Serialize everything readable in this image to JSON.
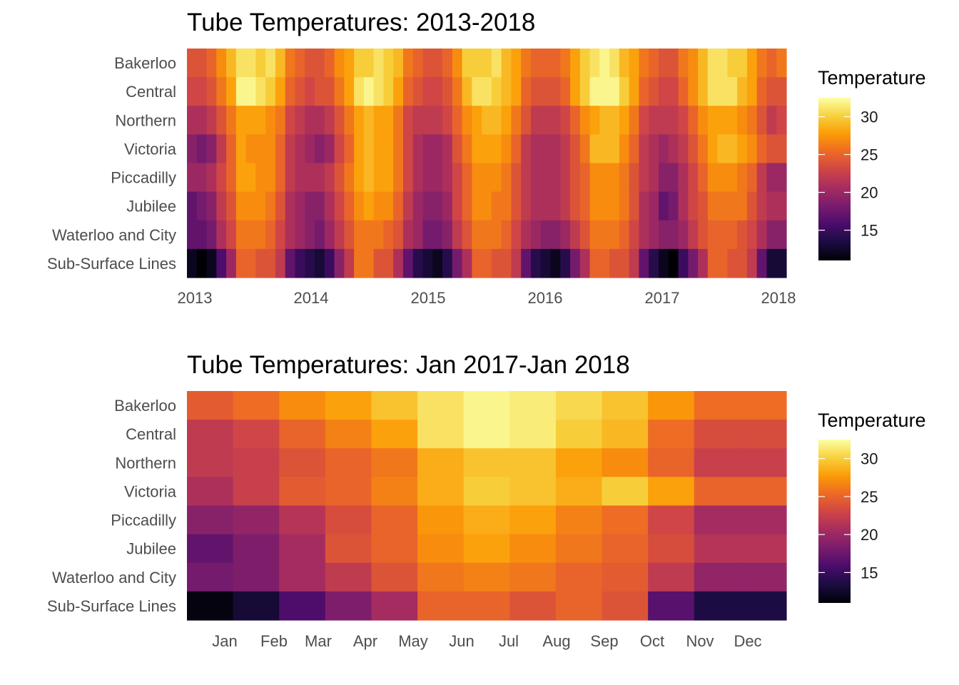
{
  "legend_title": "Temperature",
  "palette": [
    "#000004",
    "#1b0c41",
    "#4a0c6b",
    "#781c6d",
    "#a52c60",
    "#cf4446",
    "#ed6925",
    "#fb9b06",
    "#f7d13d",
    "#fcffa4"
  ],
  "chart_data": [
    {
      "type": "heatmap",
      "title": "Tube Temperatures: 2013-2018",
      "rows": [
        "Bakerloo",
        "Central",
        "Northern",
        "Victoria",
        "Piccadilly",
        "Jubilee",
        "Waterloo and City",
        "Sub-Surface Lines"
      ],
      "x_start": "2013-01",
      "x_ticks": [
        "2013",
        "2014",
        "2015",
        "2016",
        "2017",
        "2018"
      ],
      "values": [
        [
          24,
          24,
          25,
          27,
          29,
          31,
          31,
          30,
          31,
          29,
          26,
          25,
          24,
          24,
          25,
          27,
          28,
          30,
          30,
          31,
          30,
          29,
          26,
          25,
          24,
          24,
          25,
          27,
          30,
          30,
          30,
          31,
          29,
          28,
          26,
          25,
          25,
          25,
          26,
          28,
          30,
          31,
          32,
          31,
          29,
          28,
          26,
          25,
          24,
          24,
          26,
          27,
          29,
          31,
          31,
          30,
          30,
          28,
          26,
          25,
          26
        ],
        [
          23,
          23,
          24,
          26,
          28,
          32,
          32,
          31,
          30,
          28,
          25,
          24,
          23,
          24,
          24,
          26,
          28,
          31,
          32,
          31,
          30,
          28,
          25,
          24,
          23,
          23,
          24,
          26,
          29,
          31,
          31,
          30,
          29,
          28,
          25,
          24,
          24,
          24,
          25,
          28,
          30,
          32,
          32,
          32,
          30,
          28,
          25,
          24,
          23,
          23,
          25,
          27,
          29,
          31,
          31,
          31,
          29,
          28,
          25,
          24,
          24
        ],
        [
          21,
          21,
          22,
          24,
          26,
          28,
          28,
          28,
          27,
          26,
          23,
          22,
          21,
          21,
          22,
          24,
          26,
          28,
          29,
          28,
          28,
          26,
          23,
          22,
          22,
          22,
          23,
          25,
          27,
          28,
          29,
          29,
          28,
          26,
          24,
          22,
          22,
          22,
          23,
          25,
          27,
          28,
          29,
          29,
          28,
          26,
          23,
          22,
          22,
          22,
          23,
          25,
          27,
          28,
          28,
          28,
          27,
          26,
          24,
          22,
          23
        ],
        [
          19,
          18,
          19,
          22,
          25,
          28,
          27,
          27,
          27,
          25,
          22,
          21,
          20,
          19,
          20,
          23,
          25,
          28,
          29,
          28,
          28,
          26,
          23,
          21,
          20,
          20,
          21,
          24,
          26,
          28,
          28,
          28,
          27,
          25,
          22,
          21,
          21,
          21,
          22,
          24,
          26,
          29,
          29,
          29,
          27,
          25,
          22,
          21,
          20,
          21,
          22,
          24,
          26,
          28,
          29,
          29,
          28,
          27,
          25,
          24,
          24
        ],
        [
          20,
          20,
          21,
          23,
          25,
          28,
          28,
          27,
          27,
          25,
          22,
          21,
          21,
          21,
          22,
          24,
          26,
          28,
          29,
          28,
          28,
          26,
          23,
          21,
          20,
          20,
          21,
          23,
          25,
          27,
          27,
          27,
          26,
          24,
          22,
          21,
          21,
          21,
          22,
          24,
          25,
          27,
          27,
          27,
          26,
          24,
          22,
          21,
          19,
          19,
          21,
          23,
          25,
          27,
          27,
          27,
          26,
          25,
          22,
          20,
          20
        ],
        [
          17,
          18,
          19,
          22,
          24,
          27,
          27,
          27,
          26,
          24,
          21,
          20,
          19,
          19,
          21,
          23,
          25,
          27,
          28,
          27,
          27,
          25,
          22,
          20,
          19,
          19,
          20,
          23,
          25,
          27,
          27,
          26,
          26,
          24,
          22,
          21,
          21,
          21,
          22,
          24,
          25,
          27,
          27,
          27,
          26,
          24,
          21,
          20,
          17,
          18,
          21,
          23,
          24,
          26,
          26,
          26,
          26,
          24,
          22,
          21,
          21
        ],
        [
          17,
          17,
          18,
          21,
          23,
          26,
          26,
          26,
          25,
          23,
          21,
          20,
          19,
          18,
          20,
          22,
          24,
          26,
          26,
          26,
          25,
          24,
          21,
          20,
          18,
          18,
          19,
          22,
          24,
          26,
          26,
          26,
          25,
          23,
          21,
          20,
          19,
          19,
          20,
          22,
          24,
          26,
          26,
          26,
          25,
          23,
          21,
          20,
          19,
          19,
          20,
          22,
          24,
          25,
          25,
          25,
          24,
          23,
          21,
          19,
          19
        ],
        [
          12,
          11,
          12,
          16,
          20,
          25,
          25,
          24,
          24,
          22,
          17,
          15,
          14,
          13,
          15,
          19,
          22,
          26,
          26,
          24,
          24,
          21,
          17,
          14,
          13,
          12,
          14,
          18,
          21,
          25,
          25,
          24,
          24,
          22,
          17,
          14,
          13,
          12,
          14,
          18,
          21,
          25,
          25,
          24,
          24,
          22,
          17,
          14,
          12,
          11,
          15,
          18,
          21,
          25,
          25,
          24,
          24,
          22,
          17,
          13,
          13
        ]
      ]
    },
    {
      "type": "heatmap",
      "title": "Tube Temperatures: Jan 2017-Jan 2018",
      "rows": [
        "Bakerloo",
        "Central",
        "Northern",
        "Victoria",
        "Piccadilly",
        "Jubilee",
        "Waterloo and City",
        "Sub-Surface Lines"
      ],
      "x_ticks": [
        "Jan",
        "Feb",
        "Mar",
        "Apr",
        "May",
        "Jun",
        "Jul",
        "Aug",
        "Sep",
        "Oct",
        "Nov",
        "Dec"
      ],
      "values": [
        [
          24.5,
          25.5,
          27,
          28,
          29.5,
          31,
          32,
          31.5,
          30.5,
          29.5,
          27.5,
          25.5,
          25.5
        ],
        [
          22,
          23,
          25,
          26.5,
          28,
          31,
          32,
          31.5,
          30,
          29,
          25.5,
          23.5,
          23.5
        ],
        [
          22,
          22.5,
          24,
          25,
          26,
          28.5,
          29.5,
          29.5,
          28,
          27,
          25,
          22.5,
          22.5
        ],
        [
          21,
          22.5,
          24.5,
          25,
          26.5,
          28.5,
          30,
          29.5,
          28.5,
          30,
          28,
          25,
          25
        ],
        [
          19,
          19.5,
          21.5,
          23.5,
          25,
          27.5,
          28.5,
          28,
          26.5,
          25.5,
          23,
          20.5,
          20.5
        ],
        [
          17,
          18.5,
          20.5,
          24,
          25,
          27,
          28,
          27,
          26,
          25,
          23.5,
          21.5,
          21.5
        ],
        [
          18,
          18.5,
          20.5,
          22,
          24,
          26,
          26.5,
          26,
          25,
          24.5,
          22,
          19.5,
          19.5
        ],
        [
          11.5,
          13,
          16,
          18.5,
          20.5,
          25,
          25,
          24,
          25,
          24,
          16.5,
          13.5,
          13.5
        ]
      ]
    }
  ],
  "legend_ticks": [
    [
      "30",
      "25",
      "20",
      "15"
    ],
    [
      "30",
      "25",
      "20",
      "15"
    ]
  ]
}
